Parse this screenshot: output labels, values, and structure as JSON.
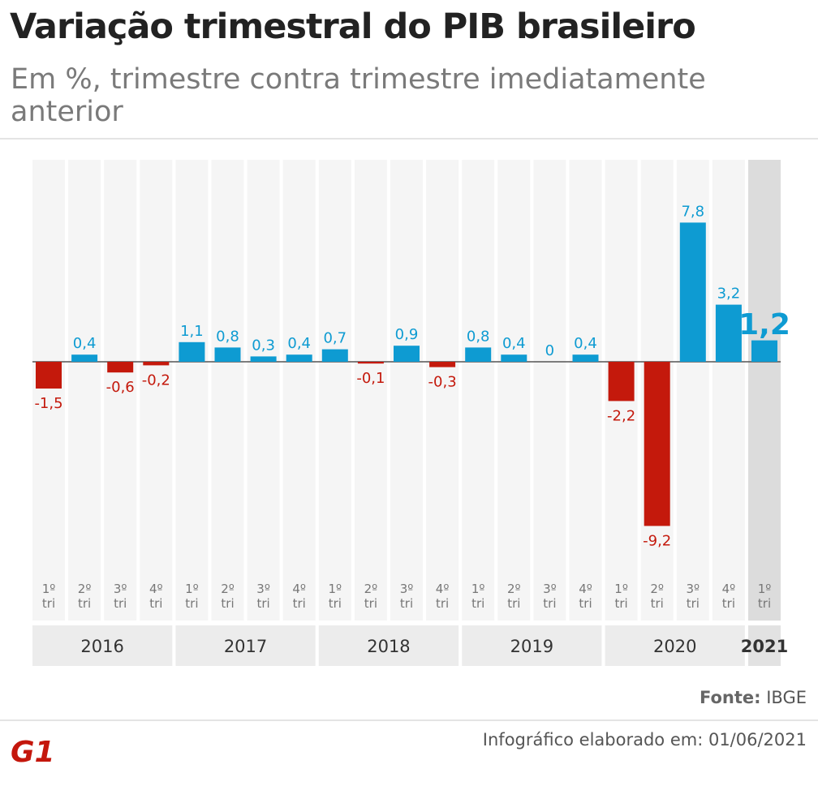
{
  "title": "Variação trimestral do PIB brasileiro",
  "subtitle": "Em %, trimestre contra trimestre imediatamente anterior",
  "source_label": "Fonte:",
  "source_value": "IBGE",
  "credit": "Infográfico elaborado em: 01/06/2021",
  "logo_text": "G1",
  "colors": {
    "positive": "#0e9bd2",
    "negative": "#c4190c",
    "highlight": "#dcdcdc",
    "column": "#f5f5f5"
  },
  "chart_data": {
    "type": "bar",
    "categories": [
      "1º tri",
      "2º tri",
      "3º tri",
      "4º tri",
      "1º tri",
      "2º tri",
      "3º tri",
      "4º tri",
      "1º tri",
      "2º tri",
      "3º tri",
      "4º tri",
      "1º tri",
      "2º tri",
      "3º tri",
      "4º tri",
      "1º tri",
      "2º tri",
      "3º tri",
      "4º tri",
      "1º tri"
    ],
    "values": [
      -1.5,
      0.4,
      -0.6,
      -0.2,
      1.1,
      0.8,
      0.3,
      0.4,
      0.7,
      -0.1,
      0.9,
      -0.3,
      0.8,
      0.4,
      0,
      0.4,
      -2.2,
      -9.2,
      7.8,
      3.2,
      1.2
    ],
    "value_labels": [
      "-1,5",
      "0,4",
      "-0,6",
      "-0,2",
      "1,1",
      "0,8",
      "0,3",
      "0,4",
      "0,7",
      "-0,1",
      "0,9",
      "-0,3",
      "0,8",
      "0,4",
      "0",
      "0,4",
      "-2,2",
      "-9,2",
      "7,8",
      "3,2",
      "1,2"
    ],
    "groups": [
      {
        "label": "2016",
        "count": 4
      },
      {
        "label": "2017",
        "count": 4
      },
      {
        "label": "2018",
        "count": 4
      },
      {
        "label": "2019",
        "count": 4
      },
      {
        "label": "2020",
        "count": 4
      },
      {
        "label": "2021",
        "count": 1,
        "highlight": true
      }
    ],
    "highlight_index": 20,
    "ylim": [
      -11.4,
      11.4
    ],
    "grid": false
  }
}
